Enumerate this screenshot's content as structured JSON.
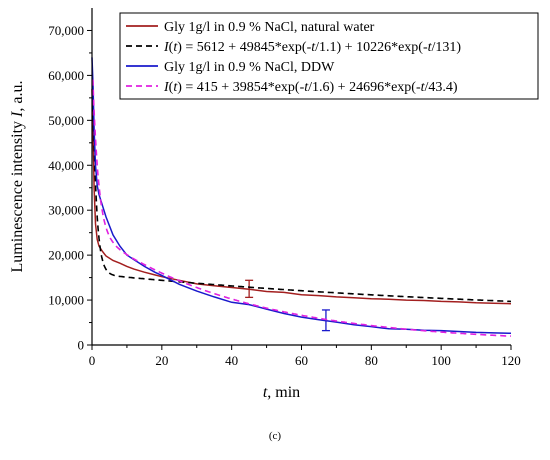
{
  "chart_data": {
    "type": "line",
    "xlabel": {
      "var": "t",
      "rest": ", min"
    },
    "ylabel": {
      "pre": "Luminescence intensity ",
      "var": "I",
      "post": ", a.u."
    },
    "caption": "(c)",
    "xlim": [
      0,
      120
    ],
    "ylim": [
      0,
      75000
    ],
    "x_ticks": [
      0,
      20,
      40,
      60,
      80,
      100,
      120
    ],
    "y_ticks": [
      0,
      10000,
      20000,
      30000,
      40000,
      50000,
      60000,
      70000
    ],
    "y_tick_labels": [
      "0",
      "10,000",
      "20,000",
      "30,000",
      "40,000",
      "50,000",
      "60,000",
      "70,000"
    ],
    "legend_position": "top-right",
    "series": [
      {
        "name": "Gly 1g/l in 0.9 % NaCl, natural water",
        "style": "solid",
        "color": "#a31f1f",
        "x": [
          0,
          0.3,
          0.6,
          1,
          1.5,
          2,
          3,
          4,
          6,
          8,
          10,
          12,
          15,
          18,
          20,
          25,
          30,
          35,
          40,
          45,
          50,
          55,
          60,
          65,
          70,
          75,
          80,
          85,
          90,
          95,
          100,
          105,
          110,
          115,
          120
        ],
        "y": [
          57000,
          48000,
          35000,
          27000,
          23500,
          22000,
          20800,
          19800,
          18800,
          18200,
          17500,
          16900,
          16200,
          15600,
          15200,
          14400,
          13600,
          13200,
          12800,
          12400,
          11900,
          11700,
          11200,
          11000,
          10700,
          10500,
          10300,
          10200,
          10000,
          9900,
          9700,
          9600,
          9400,
          9300,
          9200
        ],
        "error_bar": {
          "x": 45,
          "y": 12500,
          "err": 1900
        }
      },
      {
        "name": "I(t) = 5612 + 49845*exp(-t/1.1) + 10226*exp(-t/131)",
        "legend_parts": [
          {
            "text": "I",
            "italic": true
          },
          {
            "text": "(",
            "italic": false
          },
          {
            "text": "t",
            "italic": true
          },
          {
            "text": ") = 5612 + 49845*exp(-",
            "italic": false
          },
          {
            "text": "t",
            "italic": true
          },
          {
            "text": "/1.1) + 10226*exp(-",
            "italic": false
          },
          {
            "text": "t",
            "italic": true
          },
          {
            "text": "/131)",
            "italic": false
          }
        ],
        "style": "dashed",
        "color": "#000000",
        "fit": {
          "A0": 5612,
          "A1": 49845,
          "tau1": 1.1,
          "A2": 10226,
          "tau2": 131
        }
      },
      {
        "name": "Gly 1g/l in 0.9 % NaCl, DDW",
        "style": "solid",
        "color": "#1a1acc",
        "x": [
          0,
          0.3,
          0.6,
          1,
          1.5,
          2,
          3,
          4,
          6,
          8,
          10,
          12,
          15,
          18,
          20,
          25,
          30,
          35,
          40,
          45,
          50,
          55,
          60,
          65,
          70,
          75,
          80,
          85,
          90,
          95,
          100,
          105,
          110,
          115,
          120
        ],
        "y": [
          64000,
          58000,
          48000,
          40000,
          35500,
          33500,
          31000,
          28500,
          24500,
          22000,
          20000,
          19000,
          17500,
          16200,
          15500,
          13500,
          12000,
          10700,
          9500,
          9000,
          8000,
          7000,
          6200,
          5600,
          5100,
          4500,
          4100,
          3600,
          3500,
          3300,
          3200,
          3000,
          2800,
          2700,
          2600
        ],
        "error_bar": {
          "x": 67,
          "y": 5500,
          "err": 2300
        }
      },
      {
        "name": "I(t) = 415 + 39854*exp(-t/1.6) + 24696*exp(-t/43.4)",
        "legend_parts": [
          {
            "text": "I",
            "italic": true
          },
          {
            "text": "(",
            "italic": false
          },
          {
            "text": "t",
            "italic": true
          },
          {
            "text": ") = 415 + 39854*exp(-",
            "italic": false
          },
          {
            "text": "t",
            "italic": true
          },
          {
            "text": "/1.6) + 24696*exp(-",
            "italic": false
          },
          {
            "text": "t",
            "italic": true
          },
          {
            "text": "/43.4)",
            "italic": false
          }
        ],
        "style": "dashed",
        "color": "#e020e0",
        "fit": {
          "A0": 415,
          "A1": 39854,
          "tau1": 1.6,
          "A2": 24696,
          "tau2": 43.4
        }
      }
    ]
  }
}
